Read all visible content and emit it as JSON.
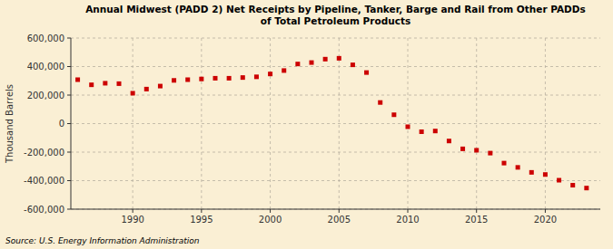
{
  "chart_data": {
    "type": "scatter",
    "title": "Annual Midwest (PADD 2) Net Receipts by Pipeline, Tanker, Barge and Rail from Other PADDs\nof Total Petroleum Products",
    "ylabel": "Thousand Barrels",
    "annotations": [
      "Source: U.S. Energy Information Administration"
    ],
    "color": "#cc0000",
    "marker": "square",
    "grid": true,
    "x": [
      1986,
      1987,
      1988,
      1989,
      1990,
      1991,
      1992,
      1993,
      1994,
      1995,
      1996,
      1997,
      1998,
      1999,
      2000,
      2001,
      2002,
      2003,
      2004,
      2005,
      2006,
      2007,
      2008,
      2009,
      2010,
      2011,
      2012,
      2013,
      2014,
      2015,
      2016,
      2017,
      2018,
      2019,
      2020,
      2021,
      2022,
      2023
    ],
    "values": [
      308000,
      272000,
      283000,
      280000,
      213000,
      242000,
      263000,
      303000,
      308000,
      313000,
      318000,
      318000,
      323000,
      328000,
      348000,
      372000,
      418000,
      428000,
      452000,
      458000,
      412000,
      358000,
      148000,
      62000,
      -22000,
      -57000,
      -52000,
      -122000,
      -177000,
      -187000,
      -207000,
      -277000,
      -307000,
      -342000,
      -357000,
      -397000,
      -432000,
      -452000
    ],
    "xlim": [
      1985.5,
      2024
    ],
    "xticks": [
      1990,
      1995,
      2000,
      2005,
      2010,
      2015,
      2020
    ],
    "ylim": [
      -600000,
      600000
    ],
    "yticks": [
      {
        "value": -600000,
        "label": "-600,000"
      },
      {
        "value": -400000,
        "label": "-400,000"
      },
      {
        "value": -200000,
        "label": "-200,000"
      },
      0,
      {
        "value": 200000,
        "label": "200,000"
      },
      {
        "value": 400000,
        "label": "400,000"
      },
      {
        "value": 600000,
        "label": "600,000"
      }
    ]
  }
}
